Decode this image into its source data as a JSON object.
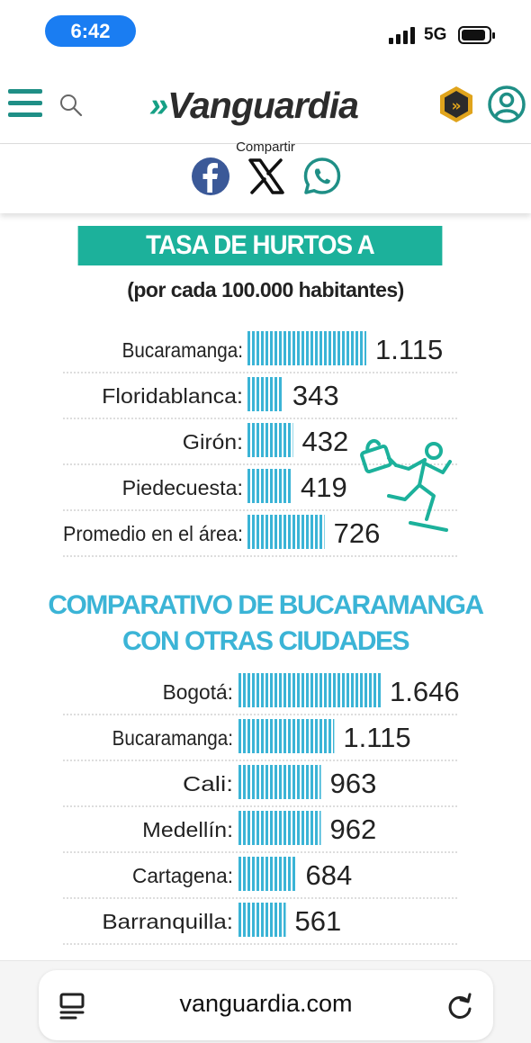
{
  "status_bar": {
    "time": "6:42",
    "network": "5G"
  },
  "header": {
    "logo_text": "Vanguardia",
    "logo_chevrons": "»",
    "brand_color": "#1f8f86"
  },
  "share": {
    "label": "Compartir",
    "icons": [
      "facebook-icon",
      "x-icon",
      "whatsapp-icon"
    ]
  },
  "infographic": {
    "title": "TASA DE HURTOS A PERSONAS",
    "subtitle": "(por cada 100.000 habitantes)",
    "section2_title_line1": "COMPARATIVO DE BUCARAMANGA",
    "section2_title_line2": "CON OTRAS CIUDADES",
    "bar_color": "#3bb4d6",
    "title_color": "#1cb19b"
  },
  "chart_data": [
    {
      "type": "bar",
      "orientation": "horizontal",
      "title": "TASA DE HURTOS A PERSONAS",
      "subtitle": "(por cada 100.000 habitantes)",
      "categories": [
        "Bucaramanga:",
        "Floridablanca:",
        "Girón:",
        "Piedecuesta:",
        "Promedio en el área:"
      ],
      "values": [
        1115,
        343,
        432,
        419,
        726
      ],
      "value_labels": [
        "1.115",
        "343",
        "432",
        "419",
        "726"
      ],
      "grid": false
    },
    {
      "type": "bar",
      "orientation": "horizontal",
      "title": "COMPARATIVO DE BUCARAMANGA CON OTRAS CIUDADES",
      "categories": [
        "Bogotá:",
        "Bucaramanga:",
        "Cali:",
        "Medellín:",
        "Cartagena:",
        "Barranquilla:"
      ],
      "values": [
        1646,
        1115,
        963,
        962,
        684,
        561
      ],
      "value_labels": [
        "1.646",
        "1.115",
        "963",
        "962",
        "684",
        "561"
      ],
      "grid": false
    }
  ],
  "browser": {
    "url": "vanguardia.com"
  }
}
